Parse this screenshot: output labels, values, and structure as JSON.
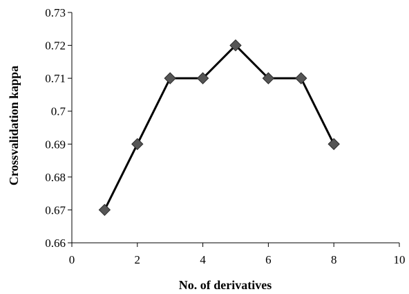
{
  "chart_data": {
    "type": "line",
    "title": "",
    "xlabel": "No. of derivatives",
    "ylabel": "Crossvalidation kappa",
    "xlim": [
      0,
      10
    ],
    "ylim": [
      0.66,
      0.73
    ],
    "xticks": [
      0,
      2,
      4,
      6,
      8,
      10
    ],
    "xtick_labels": [
      "0",
      "2",
      "4",
      "6",
      "8",
      "10"
    ],
    "yticks": [
      0.66,
      0.67,
      0.68,
      0.69,
      0.7,
      0.71,
      0.72,
      0.73
    ],
    "ytick_labels": [
      "0.66",
      "0.67",
      "0.68",
      "0.69",
      "0.7",
      "0.71",
      "0.72",
      "0.73"
    ],
    "grid": false,
    "legend": "none",
    "series": [
      {
        "x": [
          1,
          2,
          3,
          4,
          5,
          6,
          7,
          8
        ],
        "values": [
          0.67,
          0.69,
          0.71,
          0.71,
          0.72,
          0.71,
          0.71,
          0.69
        ],
        "marker": "diamond",
        "line_color": "#000000",
        "marker_color": "#555555"
      }
    ]
  }
}
